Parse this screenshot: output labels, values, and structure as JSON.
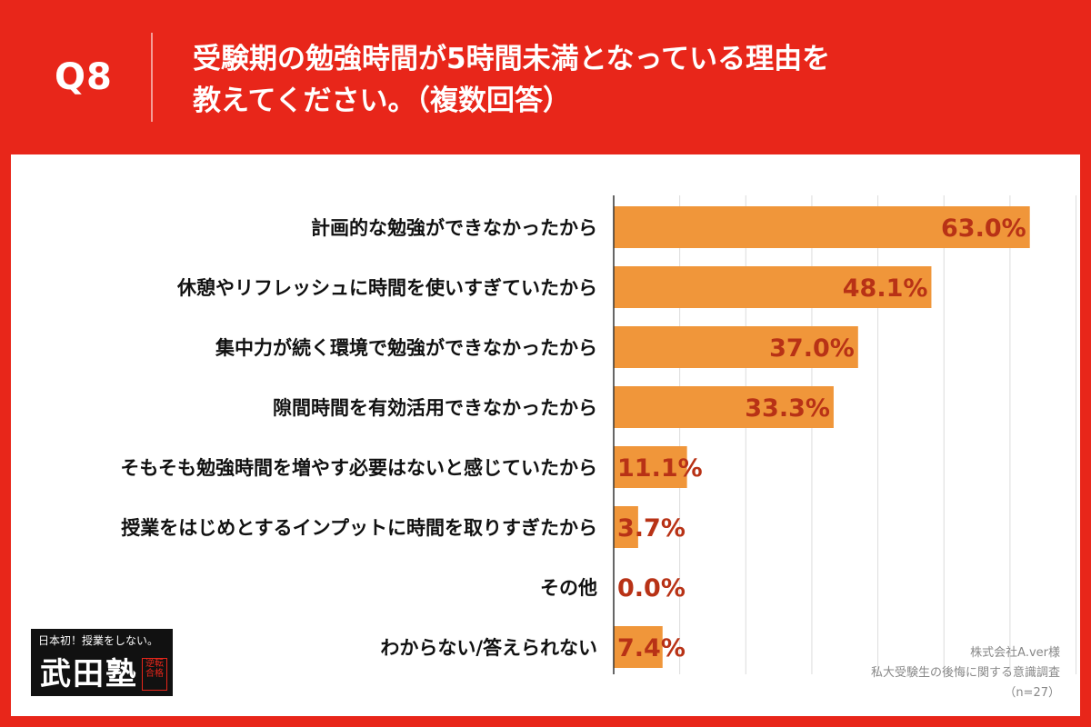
{
  "header": {
    "question_number": "Q8",
    "title_line1": "受験期の勉強時間が5時間未満となっている理由を",
    "title_line2": "教えてください。（複数回答）"
  },
  "colors": {
    "header_red": "#e8261a",
    "bar_orange": "#f0963a",
    "value_label": "#b83216",
    "category_text": "#111111",
    "gridline": "#dcdcdc"
  },
  "chart_data": {
    "type": "bar",
    "orientation": "horizontal",
    "unit": "%",
    "xlim": [
      0,
      70
    ],
    "gridlines_at": [
      10,
      20,
      30,
      40,
      50,
      60,
      70
    ],
    "categories": [
      "計画的な勉強ができなかったから",
      "休憩やリフレッシュに時間を使いすぎていたから",
      "集中力が続く環境で勉強ができなかったから",
      "隙間時間を有効活用できなかったから",
      "そもそも勉強時間を増やす必要はないと感じていたから",
      "授業をはじめとするインプットに時間を取りすぎたから",
      "その他",
      "わからない/答えられない"
    ],
    "values": [
      63.0,
      48.1,
      37.0,
      33.3,
      11.1,
      3.7,
      0.0,
      7.4
    ],
    "value_labels": [
      "63.0%",
      "48.1%",
      "37.0%",
      "33.3%",
      "11.1%",
      "3.7%",
      "0.0%",
      "7.4%"
    ]
  },
  "logo": {
    "tagline": "日本初！授業をしない。",
    "name": "武田塾",
    "stamp": "逆転合格"
  },
  "source": {
    "company": "株式会社A.ver様",
    "survey": "私大受験生の後悔に関する意識調査",
    "sample": "（n=27）"
  }
}
